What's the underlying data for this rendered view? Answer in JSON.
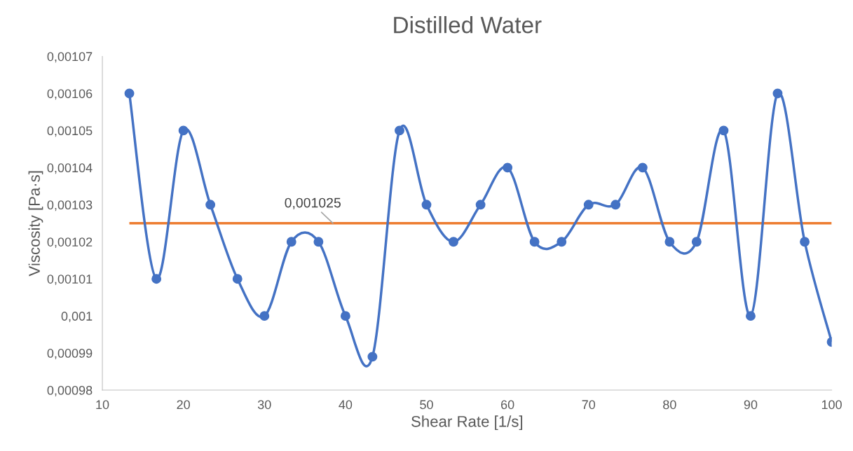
{
  "chart_data": {
    "type": "line",
    "title": "Distilled Water",
    "xlabel": "Shear Rate [1/s]",
    "ylabel": "Viscosity [Pa·s]",
    "x": [
      13.33,
      16.67,
      20,
      23.33,
      26.67,
      30,
      33.33,
      36.67,
      40,
      43.33,
      46.67,
      50,
      53.33,
      56.67,
      60,
      63.33,
      66.67,
      70,
      73.33,
      76.67,
      80,
      83.33,
      86.67,
      90,
      93.33,
      96.67,
      100
    ],
    "series": [
      {
        "color": "#4472c4",
        "values": [
          0.00106,
          0.00101,
          0.00105,
          0.00103,
          0.00101,
          0.001,
          0.00102,
          0.00102,
          0.001,
          0.000989,
          0.00105,
          0.00103,
          0.00102,
          0.00103,
          0.00104,
          0.00102,
          0.00102,
          0.00103,
          0.00103,
          0.00104,
          0.00102,
          0.00102,
          0.00105,
          0.001,
          0.00106,
          0.00102,
          0.000993
        ]
      }
    ],
    "ref_lines": [
      {
        "axis": "y",
        "value": 0.001025,
        "label": "0,001025",
        "color": "#ed7d31"
      }
    ],
    "xlim": [
      10,
      100
    ],
    "xticks": [
      10,
      20,
      30,
      40,
      50,
      60,
      70,
      80,
      90,
      100
    ],
    "ylim": [
      0.00098,
      0.00107
    ],
    "yticks": [
      {
        "value": 0.00098,
        "label": "0,00098"
      },
      {
        "value": 0.00099,
        "label": "0,00099"
      },
      {
        "value": 0.001,
        "label": "0,001"
      },
      {
        "value": 0.00101,
        "label": "0,00101"
      },
      {
        "value": 0.00102,
        "label": "0,00102"
      },
      {
        "value": 0.00103,
        "label": "0,00103"
      },
      {
        "value": 0.00104,
        "label": "0,00104"
      },
      {
        "value": 0.00105,
        "label": "0,00105"
      },
      {
        "value": 0.00106,
        "label": "0,00106"
      },
      {
        "value": 0.00107,
        "label": "0,00107"
      }
    ],
    "grid": false,
    "legend": false,
    "marker": "circle",
    "line_style": "solid"
  }
}
